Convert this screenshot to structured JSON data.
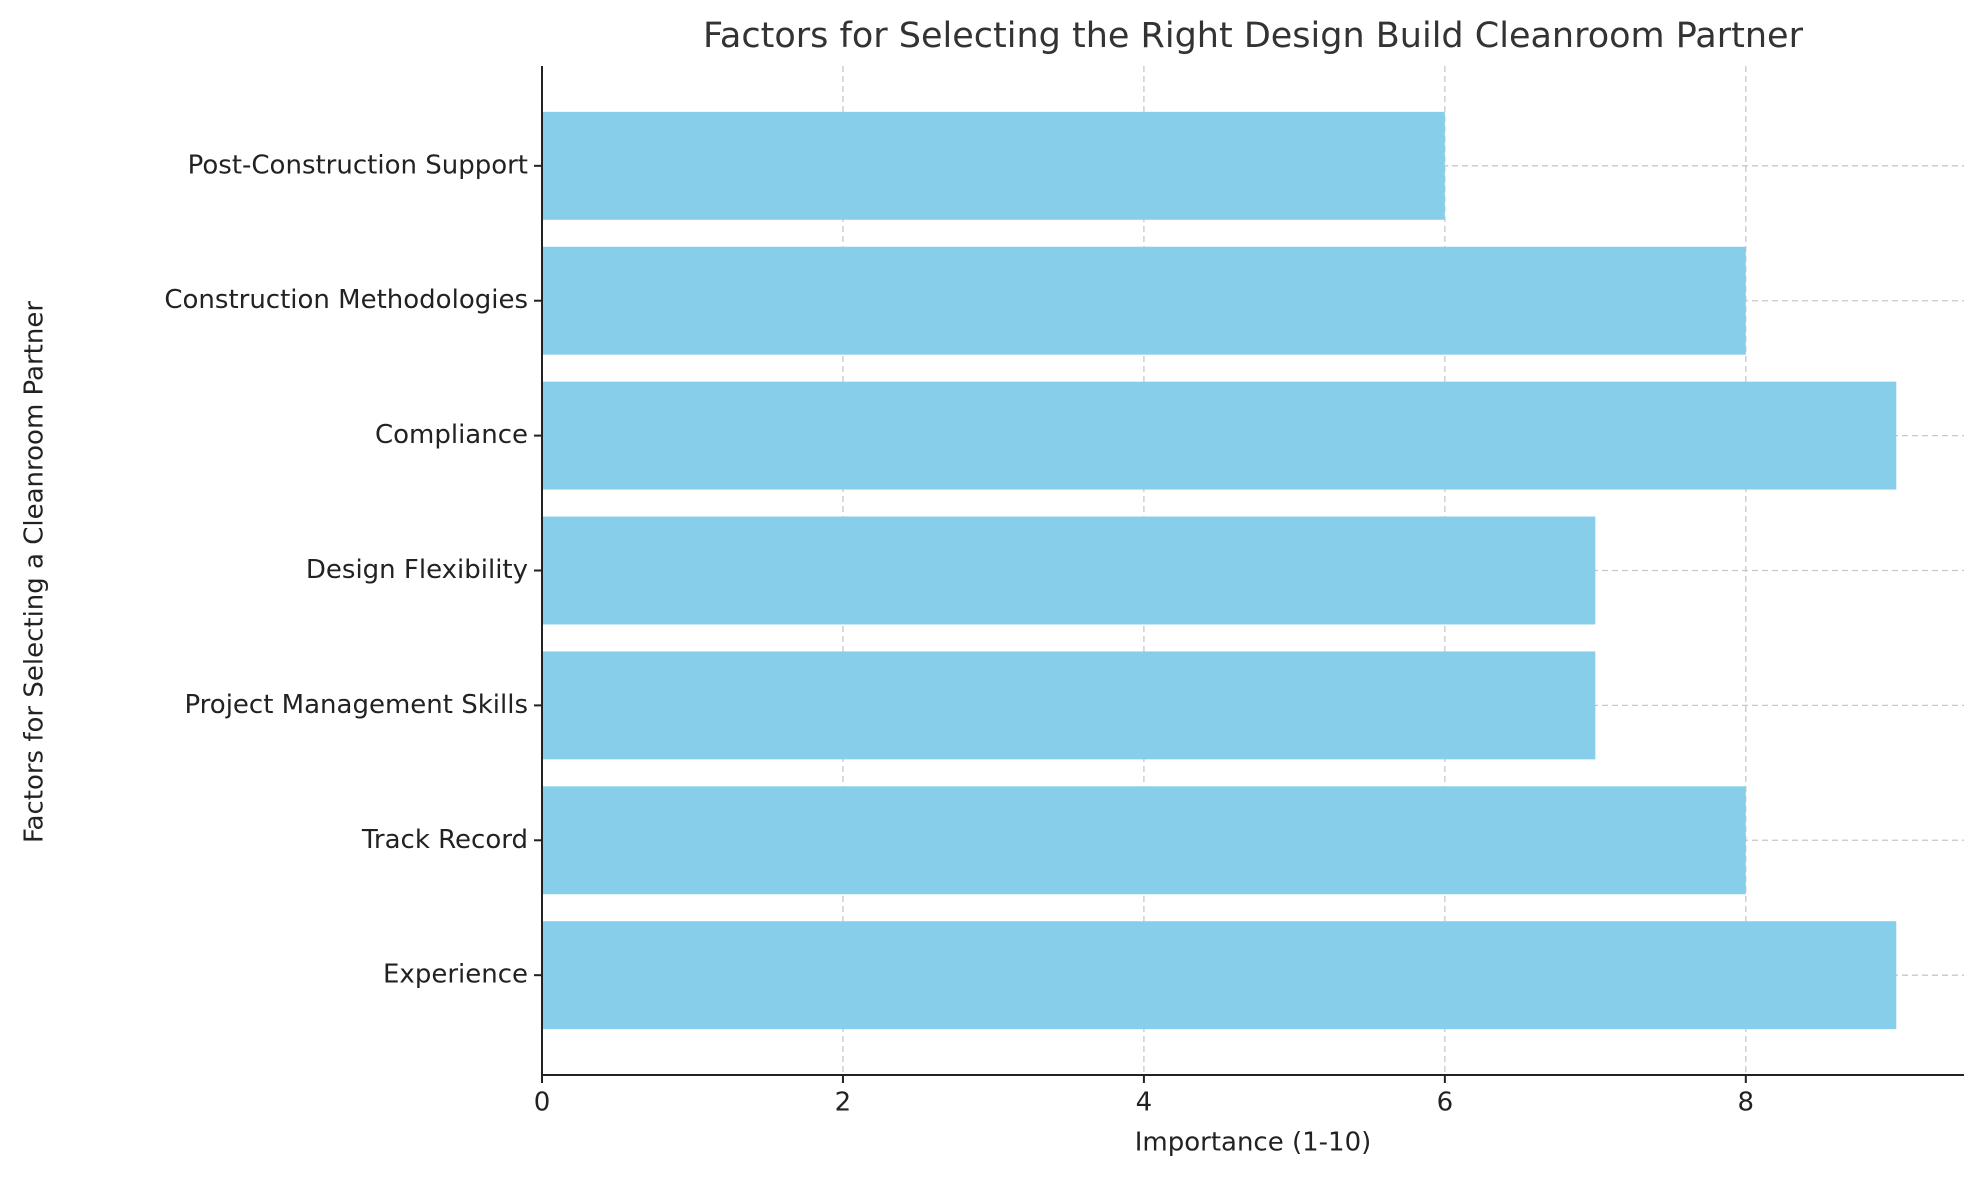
{
  "chart_data": {
    "type": "barh",
    "title": "Factors for Selecting the Right Design Build Cleanroom Partner",
    "xlabel": "Importance (1-10)",
    "ylabel": "Factors for Selecting a Cleanroom Partner",
    "categories": [
      "Experience",
      "Track Record",
      "Project Management Skills",
      "Design Flexibility",
      "Compliance",
      "Construction Methodologies",
      "Post-Construction Support"
    ],
    "values": [
      9,
      8,
      7,
      7,
      9,
      8,
      6
    ],
    "color": "#87ceeb",
    "xlim": [
      0,
      9.45
    ],
    "xticks": [
      0,
      2,
      4,
      6,
      8
    ],
    "grid": true
  }
}
